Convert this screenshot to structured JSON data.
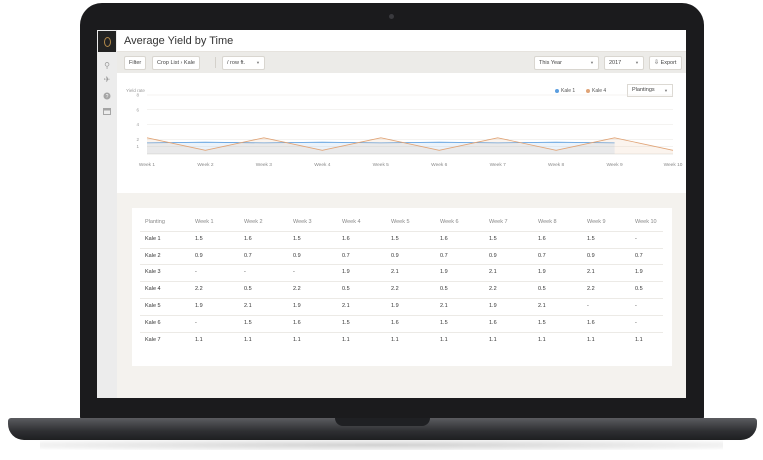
{
  "app": {
    "page_title": "Average Yield by Time"
  },
  "toolbar": {
    "filter_label": "Filter",
    "crop_list_label": "Crop List",
    "crop_list_sep": "›",
    "crop_label": "Kale",
    "unit_label": "/ row ft.",
    "period_label": "This Year",
    "year_label": "2017",
    "export_label": "Export"
  },
  "sidebar": {
    "icons": [
      "logo-icon",
      "pin-icon",
      "bird-icon",
      "help-icon",
      "calendar-icon"
    ]
  },
  "chart": {
    "y_label": "Yield rate",
    "legend": [
      {
        "name": "Kale 1",
        "color": "#5b9ee0"
      },
      {
        "name": "Kale 4",
        "color": "#e0a477"
      }
    ],
    "plantings_label": "Plantings"
  },
  "chart_data": {
    "type": "area",
    "x": [
      "Week 1",
      "Week 2",
      "Week 3",
      "Week 4",
      "Week 5",
      "Week 6",
      "Week 7",
      "Week 8",
      "Week 9",
      "Week 10"
    ],
    "ylim": [
      0,
      8
    ],
    "y_ticks": [
      1,
      2,
      4,
      6,
      8
    ],
    "grid": true,
    "legend_position": "top-right",
    "series": [
      {
        "name": "Kale 1",
        "color": "#5b9ee0",
        "values": [
          1.5,
          1.6,
          1.5,
          1.6,
          1.5,
          1.6,
          1.5,
          1.6,
          1.5,
          null
        ]
      },
      {
        "name": "Kale 4",
        "color": "#e0a477",
        "values": [
          2.2,
          0.5,
          2.2,
          0.5,
          2.2,
          0.5,
          2.2,
          0.5,
          2.2,
          0.5
        ]
      }
    ]
  },
  "table": {
    "headers": [
      "Planting",
      "Week 1",
      "Week 2",
      "Week 3",
      "Week 4",
      "Week 5",
      "Week 6",
      "Week 7",
      "Week 8",
      "Week 9",
      "Week 10"
    ],
    "rows": [
      [
        "Kale 1",
        "1.5",
        "1.6",
        "1.5",
        "1.6",
        "1.5",
        "1.6",
        "1.5",
        "1.6",
        "1.5",
        "-"
      ],
      [
        "Kale 2",
        "0.9",
        "0.7",
        "0.9",
        "0.7",
        "0.9",
        "0.7",
        "0.9",
        "0.7",
        "0.9",
        "0.7"
      ],
      [
        "Kale 3",
        "-",
        "-",
        "-",
        "1.9",
        "2.1",
        "1.9",
        "2.1",
        "1.9",
        "2.1",
        "1.9"
      ],
      [
        "Kale 4",
        "2.2",
        "0.5",
        "2.2",
        "0.5",
        "2.2",
        "0.5",
        "2.2",
        "0.5",
        "2.2",
        "0.5"
      ],
      [
        "Kale 5",
        "1.9",
        "2.1",
        "1.9",
        "2.1",
        "1.9",
        "2.1",
        "1.9",
        "2.1",
        "-",
        "-"
      ],
      [
        "Kale 6",
        "-",
        "1.5",
        "1.6",
        "1.5",
        "1.6",
        "1.5",
        "1.6",
        "1.5",
        "1.6",
        "-"
      ],
      [
        "Kale 7",
        "1.1",
        "1.1",
        "1.1",
        "1.1",
        "1.1",
        "1.1",
        "1.1",
        "1.1",
        "1.1",
        "1.1"
      ]
    ]
  }
}
